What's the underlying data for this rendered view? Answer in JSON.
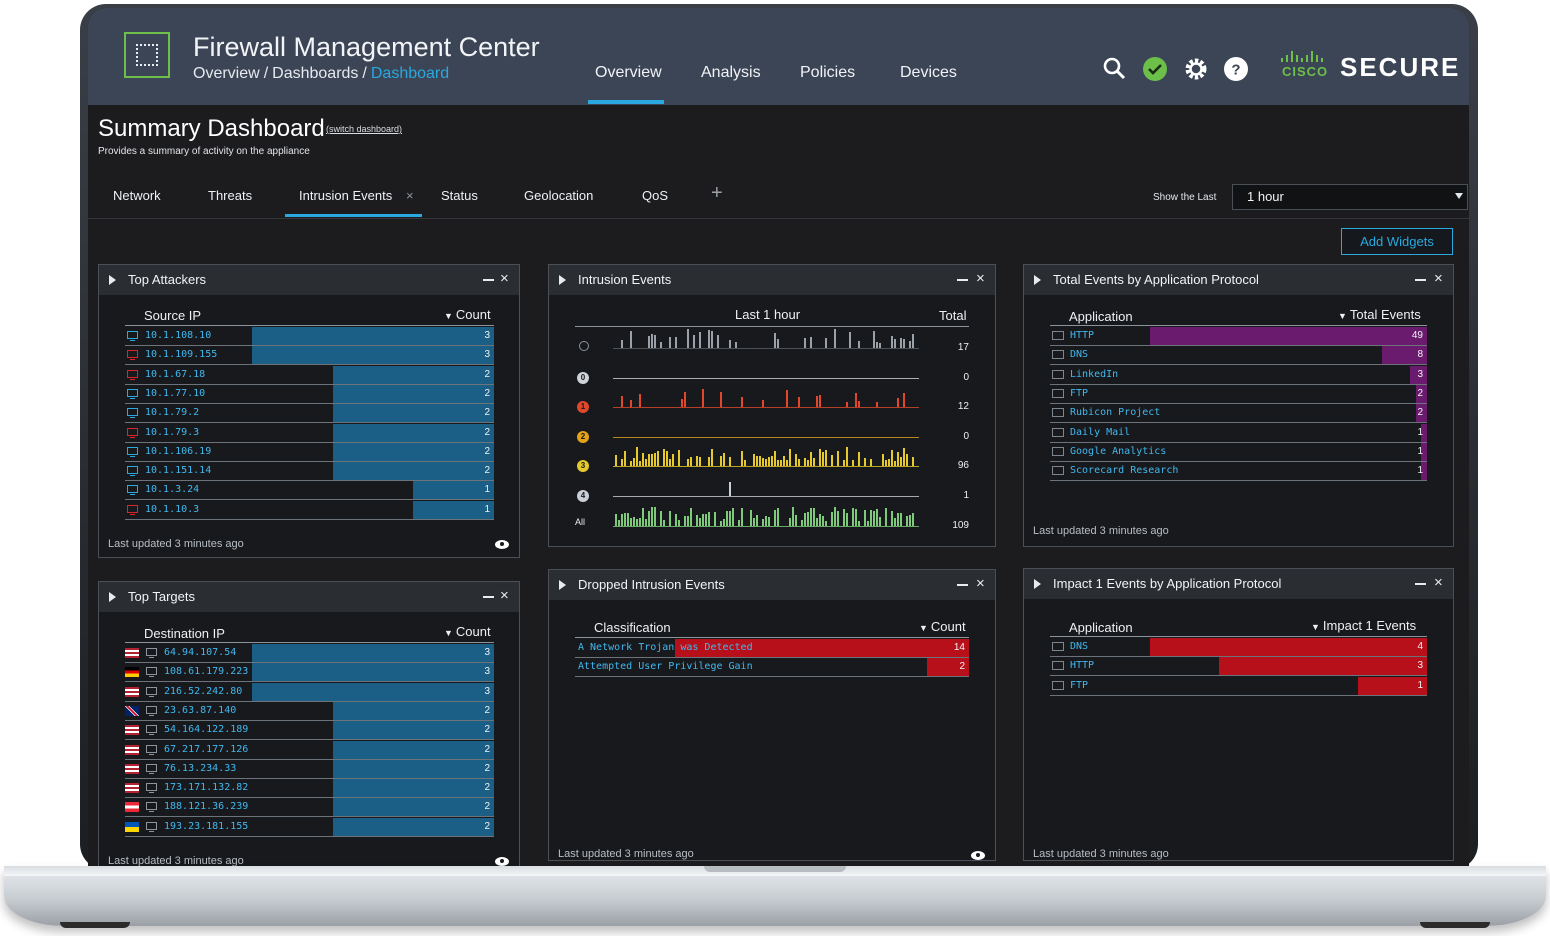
{
  "app": {
    "title": "Firewall Management Center"
  },
  "breadcrumb": [
    "Overview",
    "Dashboards",
    "Dashboard"
  ],
  "nav": [
    "Overview",
    "Analysis",
    "Policies",
    "Devices"
  ],
  "brand": {
    "cisco": "CISCO",
    "product": "SECURE"
  },
  "colors": {
    "accent": "#2aa8e0",
    "header": "#3b4555",
    "brand_green": "#6cc04a",
    "bar_blue": "#1b5f86",
    "bar_purple": "#6b1b6e",
    "bar_red": "#b8101a"
  },
  "icons": [
    "search-icon",
    "status-ok-icon",
    "gear-icon",
    "help-icon"
  ],
  "dashboard": {
    "title": "Summary Dashboard",
    "switch_label": "(switch dashboard)",
    "subtitle": "Provides a summary of activity on the appliance",
    "tabs": [
      "Network",
      "Threats",
      "Intrusion Events",
      "Status",
      "Geolocation",
      "QoS"
    ],
    "add_tab": "+",
    "close_tab": "×",
    "show_last_label": "Show the Last",
    "show_last_value": "1 hour",
    "add_widgets": "Add Widgets"
  },
  "widget_common": {
    "minimize": "–",
    "close": "×",
    "last_updated": "Last updated 3 minutes ago"
  },
  "top_attackers": {
    "title": "Top Attackers",
    "col_ip": "Source IP",
    "col_count": "Count",
    "max": 3,
    "rows": [
      {
        "ip": "10.1.108.10",
        "count": 3,
        "icon": "blue"
      },
      {
        "ip": "10.1.109.155",
        "count": 3,
        "icon": "red"
      },
      {
        "ip": "10.1.67.18",
        "count": 2,
        "icon": "red"
      },
      {
        "ip": "10.1.77.10",
        "count": 2,
        "icon": "blue"
      },
      {
        "ip": "10.1.79.2",
        "count": 2,
        "icon": "blue"
      },
      {
        "ip": "10.1.79.3",
        "count": 2,
        "icon": "red"
      },
      {
        "ip": "10.1.106.19",
        "count": 2,
        "icon": "blue"
      },
      {
        "ip": "10.1.151.14",
        "count": 2,
        "icon": "blue"
      },
      {
        "ip": "10.1.3.24",
        "count": 1,
        "icon": "blue"
      },
      {
        "ip": "10.1.10.3",
        "count": 1,
        "icon": "red"
      }
    ]
  },
  "top_targets": {
    "title": "Top Targets",
    "col_ip": "Destination IP",
    "col_count": "Count",
    "max": 3,
    "rows": [
      {
        "ip": "64.94.107.54",
        "count": 3,
        "flag": "us"
      },
      {
        "ip": "108.61.179.223",
        "count": 3,
        "flag": "de"
      },
      {
        "ip": "216.52.242.80",
        "count": 3,
        "flag": "us"
      },
      {
        "ip": "23.63.87.140",
        "count": 2,
        "flag": "gb"
      },
      {
        "ip": "54.164.122.189",
        "count": 2,
        "flag": "us"
      },
      {
        "ip": "67.217.177.126",
        "count": 2,
        "flag": "us"
      },
      {
        "ip": "76.13.234.33",
        "count": 2,
        "flag": "us"
      },
      {
        "ip": "173.171.132.82",
        "count": 2,
        "flag": "us"
      },
      {
        "ip": "188.121.36.239",
        "count": 2,
        "flag": "at"
      },
      {
        "ip": "193.23.181.155",
        "count": 2,
        "flag": "ua"
      }
    ]
  },
  "intrusion_events": {
    "title": "Intrusion Events",
    "period": "Last 1 hour",
    "col_total": "Total",
    "lanes": [
      {
        "label": "",
        "icon": "pin-icon",
        "color": "#9aa1a8",
        "total": "17"
      },
      {
        "label": "0",
        "icon": "priority-0-icon",
        "color": "#cfd4d9",
        "total": "0"
      },
      {
        "label": "1",
        "icon": "priority-1-icon",
        "color": "#e0472b",
        "total": "12"
      },
      {
        "label": "2",
        "icon": "priority-2-icon",
        "color": "#e3a21a",
        "total": "0"
      },
      {
        "label": "3",
        "icon": "priority-3-icon",
        "color": "#e6c92c",
        "total": "96"
      },
      {
        "label": "4",
        "icon": "priority-4-icon",
        "color": "#c9cfd6",
        "total": "1"
      },
      {
        "label": "All",
        "icon": "",
        "color": "#7fc97a",
        "total": "109"
      }
    ]
  },
  "dropped": {
    "title": "Dropped Intrusion Events",
    "col_class": "Classification",
    "col_count": "Count",
    "max": 14,
    "rows": [
      {
        "name": "A Network Trojan was Detected",
        "count": 14
      },
      {
        "name": "Attempted User Privilege Gain",
        "count": 2
      }
    ]
  },
  "app_protocol": {
    "title": "Total Events by Application Protocol",
    "col_app": "Application",
    "col_total": "Total Events",
    "max": 49,
    "rows": [
      {
        "name": "HTTP",
        "count": 49
      },
      {
        "name": "DNS",
        "count": 8
      },
      {
        "name": "LinkedIn",
        "count": 3
      },
      {
        "name": "FTP",
        "count": 2
      },
      {
        "name": "Rubicon Project",
        "count": 2
      },
      {
        "name": "Daily Mail",
        "count": 1
      },
      {
        "name": "Google Analytics",
        "count": 1
      },
      {
        "name": "Scorecard Research",
        "count": 1
      }
    ]
  },
  "impact1": {
    "title": "Impact 1 Events by Application Protocol",
    "col_app": "Application",
    "col_total": "Impact 1 Events",
    "max": 4,
    "rows": [
      {
        "name": "DNS",
        "count": 4
      },
      {
        "name": "HTTP",
        "count": 3
      },
      {
        "name": "FTP",
        "count": 1
      }
    ]
  }
}
